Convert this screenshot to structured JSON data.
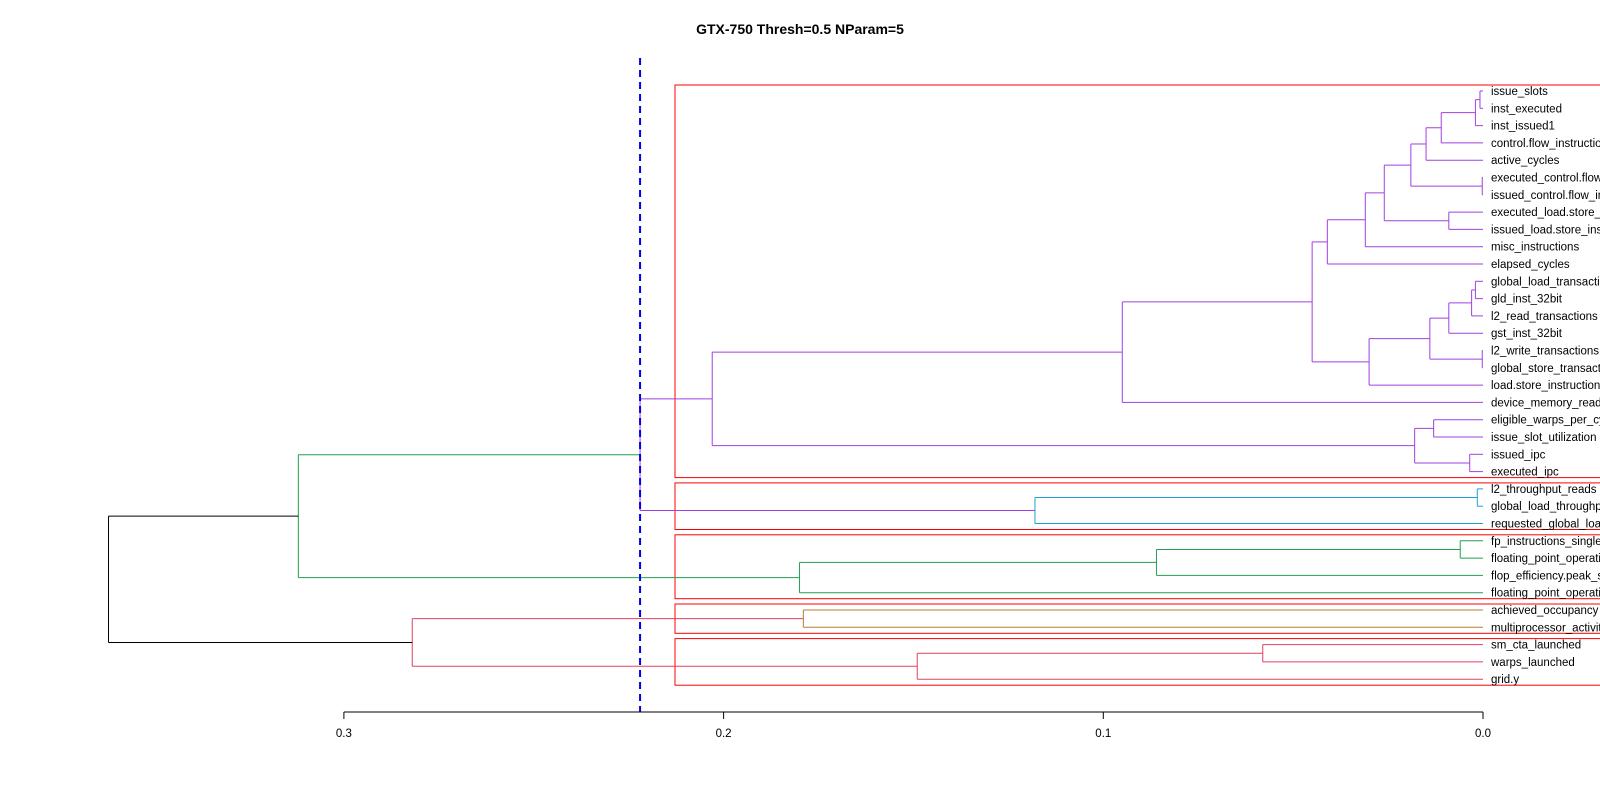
{
  "chart_data": {
    "type": "dendrogram",
    "title": "GTX-750 Thresh=0.5 NParam=5",
    "orientation": "horizontal",
    "x_axis": {
      "range": [
        0.36,
        -0.022
      ],
      "ticks": [
        0.3,
        0.2,
        0.1,
        0.0
      ],
      "tick_labels": [
        "0.3",
        "0.2",
        "0.1",
        "0.0"
      ]
    },
    "cut_height": 0.222,
    "cut_line_color": "#0000ee",
    "box_color": "#ff0000",
    "leaves": [
      "issue_slots",
      "inst_executed",
      "inst_issued1",
      "control.flow_instructions",
      "active_cycles",
      "executed_control.flow_instructions",
      "issued_control.flow_instructions",
      "executed_load.store_instructions",
      "issued_load.store_instructions",
      "misc_instructions",
      "elapsed_cycles",
      "global_load_transactions",
      "gld_inst_32bit",
      "l2_read_transactions",
      "gst_inst_32bit",
      "l2_write_transactions",
      "global_store_transactions",
      "load.store_instructions",
      "device_memory_read_transactions",
      "eligible_warps_per_cycle",
      "issue_slot_utilization",
      "issued_ipc",
      "executed_ipc",
      "l2_throughput_reads",
      "global_load_throughput",
      "requested_global_load_throughput",
      "fp_instructions_single",
      "floating_point_operations_single",
      "flop_efficiency.peak_single",
      "floating_point_operations_add",
      "achieved_occupancy",
      "multiprocessor_activity",
      "sm_cta_launched",
      "warps_launched",
      "grid.y"
    ],
    "clusters": [
      {
        "color": "#a040e0",
        "leaves": [
          0,
          22
        ]
      },
      {
        "color": "#20a0d0",
        "leaves": [
          23,
          25
        ]
      },
      {
        "color": "#20a050",
        "leaves": [
          26,
          29
        ]
      },
      {
        "color": "#b08030",
        "leaves": [
          30,
          31
        ]
      },
      {
        "color": "#e04060",
        "leaves": [
          32,
          34
        ]
      }
    ],
    "merges": [
      {
        "id": "a1",
        "children": [
          0,
          1
        ],
        "height": 0.0008,
        "color": "#a040e0"
      },
      {
        "id": "a2",
        "children": [
          "a1",
          2
        ],
        "height": 0.002,
        "color": "#a040e0"
      },
      {
        "id": "a3",
        "children": [
          "a2",
          3
        ],
        "height": 0.011,
        "color": "#a040e0"
      },
      {
        "id": "a4",
        "children": [
          "a3",
          4
        ],
        "height": 0.015,
        "color": "#a040e0"
      },
      {
        "id": "a5",
        "children": [
          5,
          6
        ],
        "height": 0.0002,
        "color": "#a040e0"
      },
      {
        "id": "a6",
        "children": [
          "a4",
          "a5"
        ],
        "height": 0.019,
        "color": "#a040e0"
      },
      {
        "id": "a7",
        "children": [
          7,
          8
        ],
        "height": 0.009,
        "color": "#a040e0"
      },
      {
        "id": "a8",
        "children": [
          "a6",
          "a7"
        ],
        "height": 0.026,
        "color": "#a040e0"
      },
      {
        "id": "a9",
        "children": [
          "a8",
          9
        ],
        "height": 0.031,
        "color": "#a040e0"
      },
      {
        "id": "a10",
        "children": [
          "a9",
          10
        ],
        "height": 0.041,
        "color": "#a040e0"
      },
      {
        "id": "b1",
        "children": [
          11,
          12
        ],
        "height": 0.002,
        "color": "#a040e0"
      },
      {
        "id": "b2",
        "children": [
          "b1",
          13
        ],
        "height": 0.003,
        "color": "#a040e0"
      },
      {
        "id": "b3",
        "children": [
          "b2",
          14
        ],
        "height": 0.009,
        "color": "#a040e0"
      },
      {
        "id": "b4",
        "children": [
          15,
          16
        ],
        "height": 0.0002,
        "color": "#a040e0"
      },
      {
        "id": "b5",
        "children": [
          "b3",
          "b4"
        ],
        "height": 0.014,
        "color": "#a040e0"
      },
      {
        "id": "b6",
        "children": [
          "b5",
          17
        ],
        "height": 0.03,
        "color": "#a040e0"
      },
      {
        "id": "c1",
        "children": [
          "a10",
          "b6"
        ],
        "height": 0.045,
        "color": "#a040e0"
      },
      {
        "id": "c2",
        "children": [
          "c1",
          18
        ],
        "height": 0.095,
        "color": "#a040e0"
      },
      {
        "id": "d1",
        "children": [
          21,
          22
        ],
        "height": 0.0035,
        "color": "#a040e0"
      },
      {
        "id": "d2",
        "children": [
          19,
          20
        ],
        "height": 0.013,
        "color": "#a040e0"
      },
      {
        "id": "d3",
        "children": [
          "d2",
          "d1"
        ],
        "height": 0.018,
        "color": "#a040e0"
      },
      {
        "id": "P",
        "children": [
          "c2",
          "d3"
        ],
        "height": 0.203,
        "color": "#a040e0"
      },
      {
        "id": "e1",
        "children": [
          23,
          24
        ],
        "height": 0.0015,
        "color": "#20a0d0"
      },
      {
        "id": "E",
        "children": [
          "e1",
          25
        ],
        "height": 0.118,
        "color": "#20a0d0"
      },
      {
        "id": "f1",
        "children": [
          26,
          27
        ],
        "height": 0.006,
        "color": "#20a050"
      },
      {
        "id": "f2",
        "children": [
          "f1",
          28
        ],
        "height": 0.086,
        "color": "#20a050"
      },
      {
        "id": "F",
        "children": [
          "f2",
          29
        ],
        "height": 0.18,
        "color": "#20a050"
      },
      {
        "id": "G",
        "children": [
          30,
          31
        ],
        "height": 0.179,
        "color": "#b08030"
      },
      {
        "id": "h1",
        "children": [
          32,
          33
        ],
        "height": 0.058,
        "color": "#e04060"
      },
      {
        "id": "H",
        "children": [
          "h1",
          34
        ],
        "height": 0.149,
        "color": "#e04060"
      },
      {
        "id": "PE",
        "children": [
          "P",
          "E"
        ],
        "height": 0.222,
        "color": "#a040e0"
      },
      {
        "id": "PEF",
        "children": [
          "PE",
          "F"
        ],
        "height": 0.312,
        "color": "#20a050"
      },
      {
        "id": "GH",
        "children": [
          "G",
          "H"
        ],
        "height": 0.282,
        "color": "#e04060"
      },
      {
        "id": "ROOT",
        "children": [
          "PEF",
          "GH"
        ],
        "height": 0.362,
        "color": "#000000"
      }
    ]
  }
}
